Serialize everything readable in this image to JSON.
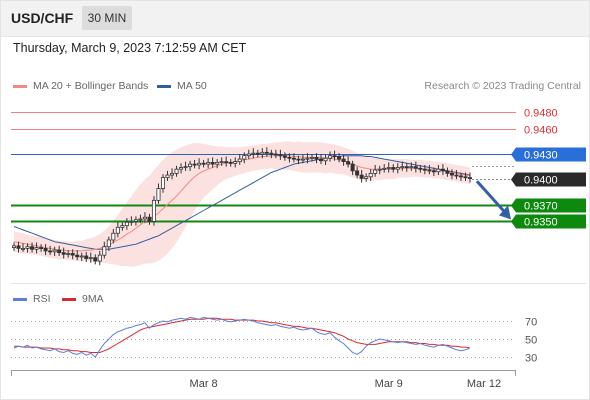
{
  "header": {
    "symbol": "USD/CHF",
    "timeframe": "30 MIN"
  },
  "datetime": "Thursday, March 9, 2023 7:12:59 AM CET",
  "legend": {
    "ma20_label": "MA 20 + Bollinger Bands",
    "ma50_label": "MA 50",
    "copyright": "Research © 2023 Trading Central"
  },
  "rsi_legend": {
    "rsi_label": "RSI",
    "ma_label": "9MA"
  },
  "colors": {
    "ma20": "#f08a80",
    "ma50": "#2f5f9e",
    "resistance": "#e05050",
    "support": "#118811",
    "candle_up": "#ffffff",
    "candle_down": "#333333",
    "arrow": "#3060a8",
    "rsi": "#5b7fd9",
    "rsi_ma": "#d92b2b"
  },
  "chart_data": [
    {
      "type": "candlestick",
      "title": "USD/CHF",
      "timeframe": "30 MIN",
      "x_labels": [
        "Mar 8",
        "Mar 9",
        "Mar 12"
      ],
      "price_range": [
        0.929,
        0.95
      ],
      "horizontal_levels": [
        {
          "label": "0.9480",
          "value": 0.948,
          "kind": "resistance"
        },
        {
          "label": "0.9460",
          "value": 0.946,
          "kind": "resistance"
        },
        {
          "label": "0.9430",
          "value": 0.943,
          "kind": "pivot"
        },
        {
          "label": "0.9400",
          "value": 0.94,
          "kind": "last"
        },
        {
          "label": "0.9370",
          "value": 0.937,
          "kind": "support"
        },
        {
          "label": "0.9350",
          "value": 0.935,
          "kind": "support"
        }
      ],
      "close_series": [
        0.9321,
        0.9318,
        0.9318,
        0.932,
        0.9317,
        0.9319,
        0.9318,
        0.9315,
        0.9314,
        0.9316,
        0.9313,
        0.9311,
        0.9312,
        0.931,
        0.9308,
        0.9309,
        0.9306,
        0.9307,
        0.9303,
        0.931,
        0.932,
        0.9328,
        0.9336,
        0.9343,
        0.9345,
        0.9349,
        0.935,
        0.9352,
        0.9353,
        0.9355,
        0.935,
        0.9375,
        0.9389,
        0.9402,
        0.9405,
        0.9407,
        0.9412,
        0.9414,
        0.9415,
        0.9418,
        0.9417,
        0.9419,
        0.9418,
        0.942,
        0.9418,
        0.942,
        0.9421,
        0.942,
        0.9419,
        0.9421,
        0.9424,
        0.9428,
        0.943,
        0.9431,
        0.943,
        0.9432,
        0.9431,
        0.943,
        0.9429,
        0.9428,
        0.9426,
        0.9425,
        0.9424,
        0.9423,
        0.9424,
        0.9425,
        0.9426,
        0.9424,
        0.9422,
        0.9425,
        0.9428,
        0.9427,
        0.9424,
        0.9421,
        0.9418,
        0.941,
        0.9405,
        0.9401,
        0.9403,
        0.9407,
        0.9411,
        0.9412,
        0.9413,
        0.9414,
        0.9412,
        0.9414,
        0.9415,
        0.9414,
        0.9415,
        0.9413,
        0.9412,
        0.9411,
        0.941,
        0.9409,
        0.9412,
        0.941,
        0.9407,
        0.9405,
        0.9404,
        0.9403,
        0.9402,
        0.9401
      ],
      "series": [
        {
          "name": "MA 20 + Bollinger Bands",
          "values": [
            0.9326,
            0.9325,
            0.9324,
            0.9323,
            0.9322,
            0.9321,
            0.932,
            0.9319,
            0.9318,
            0.9317,
            0.9316,
            0.9316,
            0.9315,
            0.9315,
            0.9315,
            0.9315,
            0.9316,
            0.9316,
            0.9317,
            0.9318,
            0.932,
            0.9322,
            0.9325,
            0.9328,
            0.9331,
            0.9335,
            0.9338,
            0.9342,
            0.9346,
            0.935,
            0.9352,
            0.9356,
            0.936,
            0.9365,
            0.937,
            0.9375,
            0.938,
            0.9386,
            0.9392,
            0.9398,
            0.9403,
            0.9407,
            0.941,
            0.9412,
            0.9414,
            0.9416,
            0.9418,
            0.9419,
            0.942,
            0.9421,
            0.9422,
            0.9423,
            0.9424,
            0.9425,
            0.9426,
            0.9427,
            0.9427,
            0.9428,
            0.9428,
            0.9428,
            0.9428,
            0.9428,
            0.9427,
            0.9427,
            0.9426,
            0.9426,
            0.9426,
            0.9426,
            0.9426,
            0.9425,
            0.9425,
            0.9424,
            0.9423,
            0.9422,
            0.942,
            0.9418,
            0.9416,
            0.9414,
            0.9413,
            0.9412,
            0.9412,
            0.9412,
            0.9412,
            0.9412,
            0.9412,
            0.9413,
            0.9413,
            0.9413,
            0.9413,
            0.9413,
            0.9413,
            0.9412,
            0.9412,
            0.9411,
            0.9411,
            0.941,
            0.9409,
            0.9408,
            0.9407,
            0.9406,
            0.9405,
            0.9404
          ]
        },
        {
          "name": "MA 50",
          "values": [
            0.9344,
            0.9342,
            0.934,
            0.9338,
            0.9336,
            0.9334,
            0.9332,
            0.933,
            0.9328,
            0.9326,
            0.9325,
            0.9324,
            0.9323,
            0.9322,
            0.9321,
            0.932,
            0.9319,
            0.9318,
            0.9317,
            0.9317,
            0.9317,
            0.9317,
            0.9318,
            0.9319,
            0.932,
            0.9321,
            0.9322,
            0.9323,
            0.9325,
            0.9327,
            0.9329,
            0.9331,
            0.9333,
            0.9336,
            0.9339,
            0.9342,
            0.9345,
            0.9348,
            0.9351,
            0.9354,
            0.9357,
            0.936,
            0.9363,
            0.9366,
            0.9369,
            0.9372,
            0.9375,
            0.9378,
            0.9381,
            0.9384,
            0.9387,
            0.939,
            0.9393,
            0.9396,
            0.9399,
            0.9402,
            0.9405,
            0.9408,
            0.941,
            0.9412,
            0.9414,
            0.9416,
            0.9418,
            0.9419,
            0.942,
            0.9421,
            0.9422,
            0.9423,
            0.9424,
            0.9425,
            0.9426,
            0.9427,
            0.9427,
            0.9428,
            0.9428,
            0.9428,
            0.9428,
            0.9428,
            0.9427,
            0.9427,
            0.9426,
            0.9425,
            0.9424,
            0.9423,
            0.9422,
            0.9421,
            0.942,
            0.9419,
            0.9418,
            0.9417,
            0.9416,
            0.9415,
            0.9414,
            0.9413,
            0.9412,
            0.9411,
            0.941,
            0.9409,
            0.9408,
            0.9407,
            0.9406,
            0.9405
          ]
        }
      ],
      "bollinger_width": [
        0.0012,
        0.0012,
        0.0012,
        0.0011,
        0.0011,
        0.0011,
        0.0011,
        0.0011,
        0.0011,
        0.0011,
        0.0011,
        0.0011,
        0.0011,
        0.0011,
        0.0012,
        0.0012,
        0.0013,
        0.0014,
        0.0015,
        0.0017,
        0.0019,
        0.0022,
        0.0026,
        0.003,
        0.0034,
        0.0038,
        0.0042,
        0.0045,
        0.0048,
        0.005,
        0.0052,
        0.0055,
        0.0057,
        0.0058,
        0.0058,
        0.0057,
        0.0055,
        0.0052,
        0.0048,
        0.0044,
        0.004,
        0.0036,
        0.0032,
        0.0029,
        0.0026,
        0.0023,
        0.0021,
        0.0019,
        0.0018,
        0.0017,
        0.0016,
        0.0016,
        0.0015,
        0.0015,
        0.0015,
        0.0015,
        0.0015,
        0.0015,
        0.0016,
        0.0016,
        0.0017,
        0.0017,
        0.0017,
        0.0018,
        0.0018,
        0.0018,
        0.0018,
        0.0018,
        0.0018,
        0.0018,
        0.0017,
        0.0017,
        0.0017,
        0.0016,
        0.0016,
        0.0016,
        0.0015,
        0.0015,
        0.0014,
        0.0014,
        0.0013,
        0.0013,
        0.0012,
        0.0012,
        0.0012,
        0.0011,
        0.0011,
        0.0011,
        0.001,
        0.001,
        0.001,
        0.001,
        0.001,
        0.001,
        0.001,
        0.001,
        0.001,
        0.001,
        0.001,
        0.001,
        0.001,
        0.001
      ],
      "projection": {
        "from": 0.94,
        "to": 0.935,
        "direction": "down"
      }
    },
    {
      "type": "line",
      "title": "RSI",
      "y_ticks": [
        70,
        50,
        30
      ],
      "y_range": [
        20,
        80
      ],
      "series": [
        {
          "name": "RSI",
          "values": [
            40,
            42,
            41,
            43,
            40,
            41,
            39,
            38,
            37,
            39,
            36,
            35,
            37,
            34,
            33,
            35,
            32,
            34,
            30,
            38,
            45,
            50,
            55,
            58,
            60,
            62,
            63,
            65,
            66,
            68,
            62,
            66,
            68,
            70,
            69,
            71,
            72,
            73,
            72,
            74,
            73,
            72,
            74,
            73,
            72,
            71,
            72,
            70,
            69,
            70,
            71,
            72,
            71,
            70,
            68,
            67,
            66,
            65,
            66,
            64,
            63,
            62,
            63,
            61,
            60,
            61,
            62,
            58,
            56,
            55,
            57,
            52,
            48,
            45,
            40,
            35,
            33,
            36,
            42,
            46,
            48,
            50,
            49,
            48,
            47,
            46,
            47,
            46,
            45,
            44,
            45,
            43,
            42,
            41,
            43,
            44,
            42,
            40,
            38,
            37,
            38,
            40
          ]
        },
        {
          "name": "9MA",
          "values": [
            42,
            42,
            41,
            41,
            41,
            41,
            40,
            40,
            40,
            39,
            39,
            38,
            38,
            37,
            37,
            36,
            36,
            35,
            35,
            35,
            37,
            39,
            42,
            45,
            48,
            51,
            54,
            57,
            60,
            62,
            63,
            64,
            65,
            66,
            67,
            68,
            69,
            70,
            71,
            72,
            72,
            72,
            72,
            73,
            73,
            73,
            72,
            72,
            72,
            71,
            71,
            71,
            71,
            71,
            70,
            70,
            69,
            68,
            68,
            67,
            66,
            65,
            64,
            64,
            63,
            62,
            62,
            61,
            60,
            59,
            58,
            57,
            55,
            53,
            50,
            48,
            46,
            45,
            44,
            44,
            44,
            45,
            46,
            47,
            47,
            47,
            47,
            47,
            46,
            46,
            45,
            45,
            44,
            44,
            43,
            43,
            43,
            42,
            42,
            41,
            41,
            40
          ]
        }
      ]
    }
  ]
}
